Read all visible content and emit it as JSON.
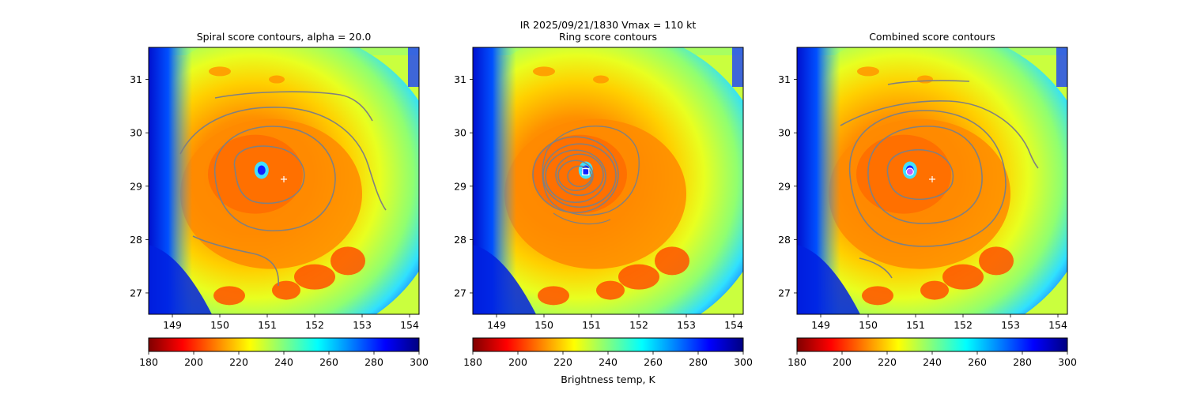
{
  "figure": {
    "suptitle": "IR  2025/09/21/1830    Vmax = 110 kt",
    "colorbar_label": "Brightness temp, K",
    "colormap_stops": [
      "#800000",
      "#ff0000",
      "#ff8000",
      "#ffff00",
      "#80ff80",
      "#00ffff",
      "#0080ff",
      "#0000ff",
      "#000080"
    ]
  },
  "chart_data": [
    {
      "type": "heatmap",
      "title": "Spiral score contours, alpha = 20.0",
      "xlim": [
        148.5,
        154.2
      ],
      "ylim": [
        26.6,
        31.6
      ],
      "xticks": [
        "149",
        "150",
        "151",
        "152",
        "153",
        "154"
      ],
      "yticks": [
        "27",
        "28",
        "29",
        "30",
        "31"
      ],
      "colorbar": {
        "range": [
          180,
          300
        ],
        "ticks": [
          "180",
          "200",
          "220",
          "240",
          "260",
          "280",
          "300"
        ]
      },
      "markers": [
        {
          "name": "center",
          "symbol": "+",
          "lon": 151.35,
          "lat": 29.13,
          "color": "#ffffff"
        }
      ],
      "contour_color": "#808080"
    },
    {
      "type": "heatmap",
      "title": "Ring score contours",
      "xlim": [
        148.5,
        154.2
      ],
      "ylim": [
        26.6,
        31.6
      ],
      "xticks": [
        "149",
        "150",
        "151",
        "152",
        "153",
        "154"
      ],
      "yticks": [
        "27",
        "28",
        "29",
        "30",
        "31"
      ],
      "colorbar": {
        "range": [
          180,
          300
        ],
        "ticks": [
          "180",
          "200",
          "220",
          "240",
          "260",
          "280",
          "300"
        ]
      },
      "markers": [
        {
          "name": "ring-center",
          "symbol": "square",
          "lon": 150.88,
          "lat": 29.27,
          "color": "#ffffff"
        }
      ],
      "contour_color": "#808080"
    },
    {
      "type": "heatmap",
      "title": "Combined score contours",
      "xlim": [
        148.5,
        154.2
      ],
      "ylim": [
        26.6,
        31.6
      ],
      "xticks": [
        "149",
        "150",
        "151",
        "152",
        "153",
        "154"
      ],
      "yticks": [
        "27",
        "28",
        "29",
        "30",
        "31"
      ],
      "colorbar": {
        "range": [
          180,
          300
        ],
        "ticks": [
          "180",
          "200",
          "220",
          "240",
          "260",
          "280",
          "300"
        ]
      },
      "markers": [
        {
          "name": "combined-center",
          "symbol": "circle",
          "lon": 150.88,
          "lat": 29.27,
          "color": "#c060ff"
        },
        {
          "name": "center",
          "symbol": "+",
          "lon": 151.35,
          "lat": 29.13,
          "color": "#ffffff"
        }
      ],
      "contour_color": "#808080"
    }
  ]
}
